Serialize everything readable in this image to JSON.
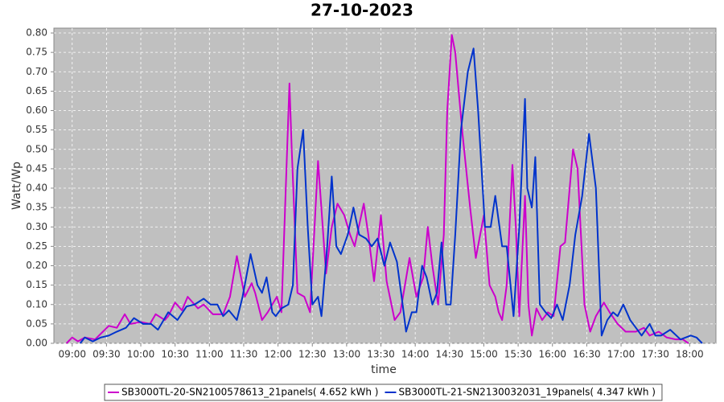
{
  "chart_data": {
    "type": "line",
    "title": "27-10-2023",
    "x_label": "time",
    "y_label": "Watt/Wp",
    "xlim": [
      524,
      1103
    ],
    "ylim": [
      0,
      0.8125
    ],
    "grid": true,
    "legend": "bottom",
    "xticks": [
      {
        "value": 540,
        "label": "09:00"
      },
      {
        "value": 570,
        "label": "09:30"
      },
      {
        "value": 600,
        "label": "10:00"
      },
      {
        "value": 630,
        "label": "10:30"
      },
      {
        "value": 660,
        "label": "11:00"
      },
      {
        "value": 690,
        "label": "11:30"
      },
      {
        "value": 720,
        "label": "12:00"
      },
      {
        "value": 750,
        "label": "12:30"
      },
      {
        "value": 780,
        "label": "13:00"
      },
      {
        "value": 810,
        "label": "13:30"
      },
      {
        "value": 840,
        "label": "14:00"
      },
      {
        "value": 870,
        "label": "14:30"
      },
      {
        "value": 900,
        "label": "15:00"
      },
      {
        "value": 930,
        "label": "15:30"
      },
      {
        "value": 960,
        "label": "16:00"
      },
      {
        "value": 990,
        "label": "16:30"
      },
      {
        "value": 1020,
        "label": "17:00"
      },
      {
        "value": 1050,
        "label": "17:30"
      },
      {
        "value": 1080,
        "label": "18:00"
      }
    ],
    "yticks": [
      {
        "value": 0,
        "label": "0.00"
      },
      {
        "value": 0.05,
        "label": "0.05"
      },
      {
        "value": 0.1,
        "label": "0.10"
      },
      {
        "value": 0.15,
        "label": "0.15"
      },
      {
        "value": 0.2,
        "label": "0.20"
      },
      {
        "value": 0.25,
        "label": "0.25"
      },
      {
        "value": 0.3,
        "label": "0.30"
      },
      {
        "value": 0.35,
        "label": "0.35"
      },
      {
        "value": 0.4,
        "label": "0.40"
      },
      {
        "value": 0.45,
        "label": "0.45"
      },
      {
        "value": 0.5,
        "label": "0.50"
      },
      {
        "value": 0.55,
        "label": "0.55"
      },
      {
        "value": 0.6,
        "label": "0.60"
      },
      {
        "value": 0.65,
        "label": "0.65"
      },
      {
        "value": 0.7,
        "label": "0.70"
      },
      {
        "value": 0.75,
        "label": "0.75"
      },
      {
        "value": 0.8,
        "label": "0.80"
      }
    ],
    "series": [
      {
        "name": "SB3000TL-20-SN2100578613_21panels( 4.652 kWh )",
        "color": "#cc00cc",
        "x": [
          535,
          540,
          545,
          551,
          560,
          572,
          579,
          586,
          591,
          600,
          608,
          613,
          621,
          624,
          630,
          636,
          641,
          650,
          655,
          663,
          672,
          678,
          684,
          691,
          697,
          700,
          706,
          711,
          719,
          723,
          730,
          732,
          737,
          743,
          748,
          755,
          762,
          767,
          772,
          778,
          783,
          787,
          795,
          799,
          804,
          810,
          815,
          822,
          827,
          835,
          841,
          847,
          851,
          855,
          860,
          865,
          868,
          872,
          875,
          881,
          888,
          893,
          900,
          905,
          910,
          913,
          916,
          920,
          925,
          928,
          931,
          936,
          939,
          942,
          946,
          951,
          956,
          961,
          967,
          971,
          978,
          982,
          988,
          993,
          998,
          1005,
          1010,
          1017,
          1024,
          1033,
          1040,
          1045,
          1053,
          1060,
          1068,
          1074,
          1079
        ],
        "values": [
          0,
          0.015,
          0.005,
          0.015,
          0.01,
          0.045,
          0.04,
          0.075,
          0.05,
          0.055,
          0.05,
          0.075,
          0.06,
          0.07,
          0.105,
          0.085,
          0.12,
          0.09,
          0.1,
          0.075,
          0.075,
          0.12,
          0.225,
          0.12,
          0.155,
          0.13,
          0.06,
          0.08,
          0.12,
          0.08,
          0.67,
          0.5,
          0.13,
          0.12,
          0.08,
          0.47,
          0.18,
          0.3,
          0.36,
          0.33,
          0.28,
          0.25,
          0.36,
          0.28,
          0.16,
          0.33,
          0.16,
          0.06,
          0.08,
          0.22,
          0.12,
          0.17,
          0.3,
          0.2,
          0.1,
          0.28,
          0.6,
          0.795,
          0.75,
          0.55,
          0.35,
          0.22,
          0.33,
          0.15,
          0.12,
          0.08,
          0.06,
          0.15,
          0.46,
          0.3,
          0.07,
          0.38,
          0.1,
          0.02,
          0.09,
          0.06,
          0.08,
          0.07,
          0.25,
          0.26,
          0.5,
          0.45,
          0.1,
          0.03,
          0.07,
          0.105,
          0.08,
          0.05,
          0.03,
          0.03,
          0.04,
          0.02,
          0.03,
          0.015,
          0.01,
          0.01,
          0
        ]
      },
      {
        "name": "SB3000TL-21-SN2130032031_19panels( 4.347 kWh )",
        "color": "#0033cc",
        "x": [
          547,
          551,
          558,
          565,
          572,
          579,
          587,
          594,
          602,
          609,
          615,
          624,
          632,
          640,
          647,
          655,
          661,
          667,
          672,
          677,
          684,
          689,
          696,
          702,
          706,
          710,
          715,
          718,
          723,
          729,
          733,
          737,
          742,
          746,
          750,
          755,
          758,
          763,
          767,
          771,
          775,
          781,
          786,
          791,
          797,
          802,
          807,
          813,
          818,
          824,
          829,
          832,
          837,
          841,
          846,
          850,
          855,
          859,
          863,
          867,
          871,
          875,
          880,
          886,
          891,
          895,
          901,
          906,
          910,
          916,
          920,
          926,
          931,
          936,
          938,
          942,
          945,
          949,
          954,
          959,
          964,
          969,
          975,
          980,
          986,
          992,
          998,
          1003,
          1008,
          1013,
          1017,
          1022,
          1028,
          1033,
          1038,
          1045,
          1050,
          1055,
          1063,
          1072,
          1081,
          1086,
          1091
        ],
        "values": [
          0,
          0.015,
          0.005,
          0.015,
          0.02,
          0.03,
          0.04,
          0.065,
          0.05,
          0.05,
          0.035,
          0.08,
          0.06,
          0.095,
          0.1,
          0.115,
          0.1,
          0.1,
          0.07,
          0.085,
          0.06,
          0.12,
          0.23,
          0.15,
          0.13,
          0.17,
          0.08,
          0.07,
          0.09,
          0.1,
          0.15,
          0.45,
          0.55,
          0.3,
          0.1,
          0.12,
          0.07,
          0.25,
          0.43,
          0.25,
          0.23,
          0.28,
          0.35,
          0.28,
          0.27,
          0.25,
          0.27,
          0.2,
          0.26,
          0.21,
          0.1,
          0.03,
          0.08,
          0.08,
          0.2,
          0.17,
          0.1,
          0.13,
          0.26,
          0.1,
          0.1,
          0.28,
          0.55,
          0.7,
          0.76,
          0.6,
          0.3,
          0.3,
          0.38,
          0.25,
          0.25,
          0.07,
          0.3,
          0.63,
          0.4,
          0.35,
          0.48,
          0.1,
          0.08,
          0.065,
          0.1,
          0.06,
          0.15,
          0.28,
          0.38,
          0.54,
          0.4,
          0.02,
          0.06,
          0.08,
          0.07,
          0.1,
          0.06,
          0.04,
          0.02,
          0.05,
          0.02,
          0.02,
          0.035,
          0.01,
          0.02,
          0.015,
          0
        ]
      }
    ]
  }
}
